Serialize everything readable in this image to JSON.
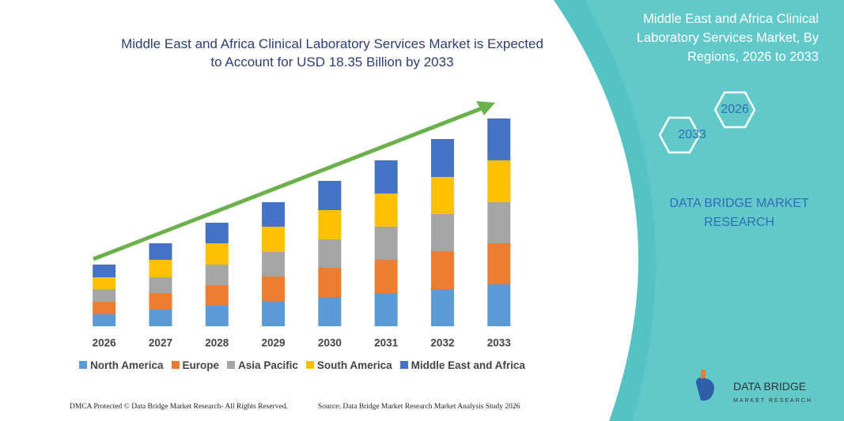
{
  "chart_data": {
    "type": "stacked-bar",
    "title": "Middle East and Africa Clinical Laboratory Services Market is Expected to Account for USD 18.35 Billion by 2033",
    "categories": [
      "2026",
      "2027",
      "2028",
      "2029",
      "2030",
      "2031",
      "2032",
      "2033"
    ],
    "series": [
      {
        "name": "North America",
        "color": "#5b9bd5",
        "values": [
          15,
          21,
          26,
          32,
          37,
          42,
          47,
          53
        ]
      },
      {
        "name": "Europe",
        "color": "#ed7d31",
        "values": [
          16,
          21,
          26,
          31,
          37,
          42,
          48,
          52
        ]
      },
      {
        "name": "Asia Pacific",
        "color": "#a5a5a5",
        "values": [
          16,
          20,
          26,
          31,
          36,
          42,
          47,
          52
        ]
      },
      {
        "name": "South America",
        "color": "#ffc000",
        "values": [
          15,
          22,
          27,
          32,
          37,
          42,
          47,
          53
        ]
      },
      {
        "name": "Middle East and Africa",
        "color": "#4472c4",
        "values": [
          16,
          21,
          26,
          31,
          37,
          42,
          48,
          53
        ]
      }
    ],
    "legend": "bottom"
  },
  "panel": {
    "title": "Middle East and Africa Clinical Laboratory Services Market, By Regions, 2026 to 2033",
    "hexagons": [
      "2026",
      "2033"
    ],
    "brand": "DATA BRIDGE MARKET RESEARCH",
    "logo": {
      "name": "DATA BRIDGE",
      "tagline": "MARKET RESEARCH"
    }
  },
  "footer": {
    "left": "DMCA Protected © Data Bridge Market Research- All Rights Reserved.",
    "right": "Source: Data Bridge Market Research Market Analysis Study 2026"
  }
}
